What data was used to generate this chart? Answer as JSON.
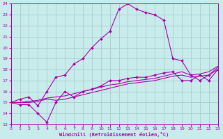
{
  "xlabel": "Windchill (Refroidissement éolien,°C)",
  "xlim": [
    0,
    23
  ],
  "ylim": [
    13,
    24
  ],
  "xticks": [
    0,
    1,
    2,
    3,
    4,
    5,
    6,
    7,
    8,
    9,
    10,
    11,
    12,
    13,
    14,
    15,
    16,
    17,
    18,
    19,
    20,
    21,
    22,
    23
  ],
  "yticks": [
    13,
    14,
    15,
    16,
    17,
    18,
    19,
    20,
    21,
    22,
    23,
    24
  ],
  "bg_color": "#c8ecec",
  "line_color": "#aa00aa",
  "grid_color": "#aacccc",
  "line1_x": [
    0,
    1,
    2,
    3,
    4,
    5,
    6,
    7,
    8,
    9,
    10,
    11,
    12,
    13,
    14,
    15,
    16,
    17,
    18,
    19,
    20,
    21,
    22,
    23
  ],
  "line1_y": [
    15.0,
    15.3,
    15.5,
    14.7,
    16.0,
    17.3,
    17.5,
    18.5,
    19.0,
    20.0,
    20.8,
    21.5,
    23.5,
    24.0,
    23.5,
    23.2,
    23.0,
    22.5,
    19.0,
    18.8,
    17.5,
    17.0,
    17.5,
    18.0
  ],
  "line2_x": [
    0,
    1,
    2,
    3,
    4,
    5,
    6,
    7,
    8,
    9,
    10,
    11,
    12,
    13,
    14,
    15,
    16,
    17,
    18,
    19,
    20,
    21,
    22,
    23
  ],
  "line2_y": [
    15.0,
    14.8,
    14.8,
    14.0,
    13.2,
    15.0,
    16.0,
    15.5,
    16.0,
    16.2,
    16.5,
    17.0,
    17.0,
    17.2,
    17.3,
    17.3,
    17.5,
    17.7,
    17.8,
    17.0,
    17.0,
    17.5,
    17.0,
    18.0
  ],
  "line3_x": [
    0,
    1,
    2,
    3,
    4,
    5,
    6,
    7,
    8,
    9,
    10,
    11,
    12,
    13,
    14,
    15,
    16,
    17,
    18,
    19,
    20,
    21,
    22,
    23
  ],
  "line3_y": [
    15.0,
    15.0,
    15.0,
    15.1,
    15.3,
    15.2,
    15.3,
    15.5,
    15.7,
    15.9,
    16.1,
    16.3,
    16.5,
    16.7,
    16.8,
    16.9,
    17.0,
    17.2,
    17.4,
    17.5,
    17.3,
    17.4,
    17.5,
    18.2
  ],
  "line4_x": [
    0,
    1,
    2,
    3,
    4,
    5,
    6,
    7,
    8,
    9,
    10,
    11,
    12,
    13,
    14,
    15,
    16,
    17,
    18,
    19,
    20,
    21,
    22,
    23
  ],
  "line4_y": [
    15.0,
    15.0,
    15.1,
    15.2,
    15.4,
    15.5,
    15.6,
    15.8,
    16.0,
    16.2,
    16.4,
    16.6,
    16.7,
    16.9,
    17.0,
    17.1,
    17.2,
    17.4,
    17.6,
    17.8,
    17.5,
    17.6,
    17.8,
    18.3
  ]
}
